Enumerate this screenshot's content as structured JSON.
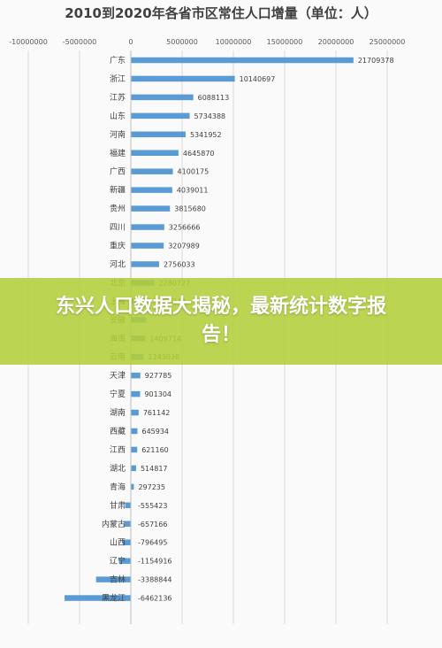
{
  "chart_data": {
    "type": "bar",
    "orientation": "horizontal",
    "title": "2010到2020年各省市区常住人口增量（单位：人）",
    "xlim": [
      -10000000,
      25000000
    ],
    "x_ticks": [
      "-10000000",
      "-5000000",
      "0",
      "5000000",
      "10000000",
      "15000000",
      "20000000",
      "25000000"
    ],
    "x_tick_values": [
      -10000000,
      -5000000,
      0,
      5000000,
      10000000,
      15000000,
      20000000,
      25000000
    ],
    "grid": true,
    "color": "#5b9bd5",
    "categories": [
      "广东",
      "浙江",
      "江苏",
      "山东",
      "河南",
      "福建",
      "广西",
      "新疆",
      "贵州",
      "四川",
      "重庆",
      "河北",
      "北京",
      "上海",
      "安徽",
      "海南",
      "云南",
      "天津",
      "宁夏",
      "湖南",
      "西藏",
      "江西",
      "湖北",
      "青海",
      "甘肃",
      "内蒙古",
      "山西",
      "辽宁",
      "吉林",
      "黑龙江"
    ],
    "values": [
      21709378,
      10140697,
      6088113,
      5734388,
      5341952,
      4645870,
      4100175,
      4039011,
      3815680,
      3256666,
      3207989,
      2756033,
      2280727,
      1853744,
      1500000,
      1409714,
      1243038,
      927785,
      901304,
      761142,
      645934,
      621160,
      514817,
      297235,
      -555423,
      -657166,
      -796495,
      -1154916,
      -3388844,
      -6462136
    ],
    "value_labels": [
      "21709378",
      "10140697",
      "6088113",
      "5734388",
      "5341952",
      "4645870",
      "4100175",
      "4039011",
      "3815680",
      "3256666",
      "3207989",
      "2756033",
      "2280727",
      "1853744",
      "",
      "1409714",
      "1243038",
      "927785",
      "901304",
      "761142",
      "645934",
      "621160",
      "514817",
      "297235",
      "-555423",
      "-657166",
      "-796495",
      "-1154916",
      "-3388844",
      "-6462136"
    ]
  },
  "banner": {
    "text": "东兴人口数据大揭秘，最新统计数字报告！",
    "color": "#b2ce3a"
  }
}
